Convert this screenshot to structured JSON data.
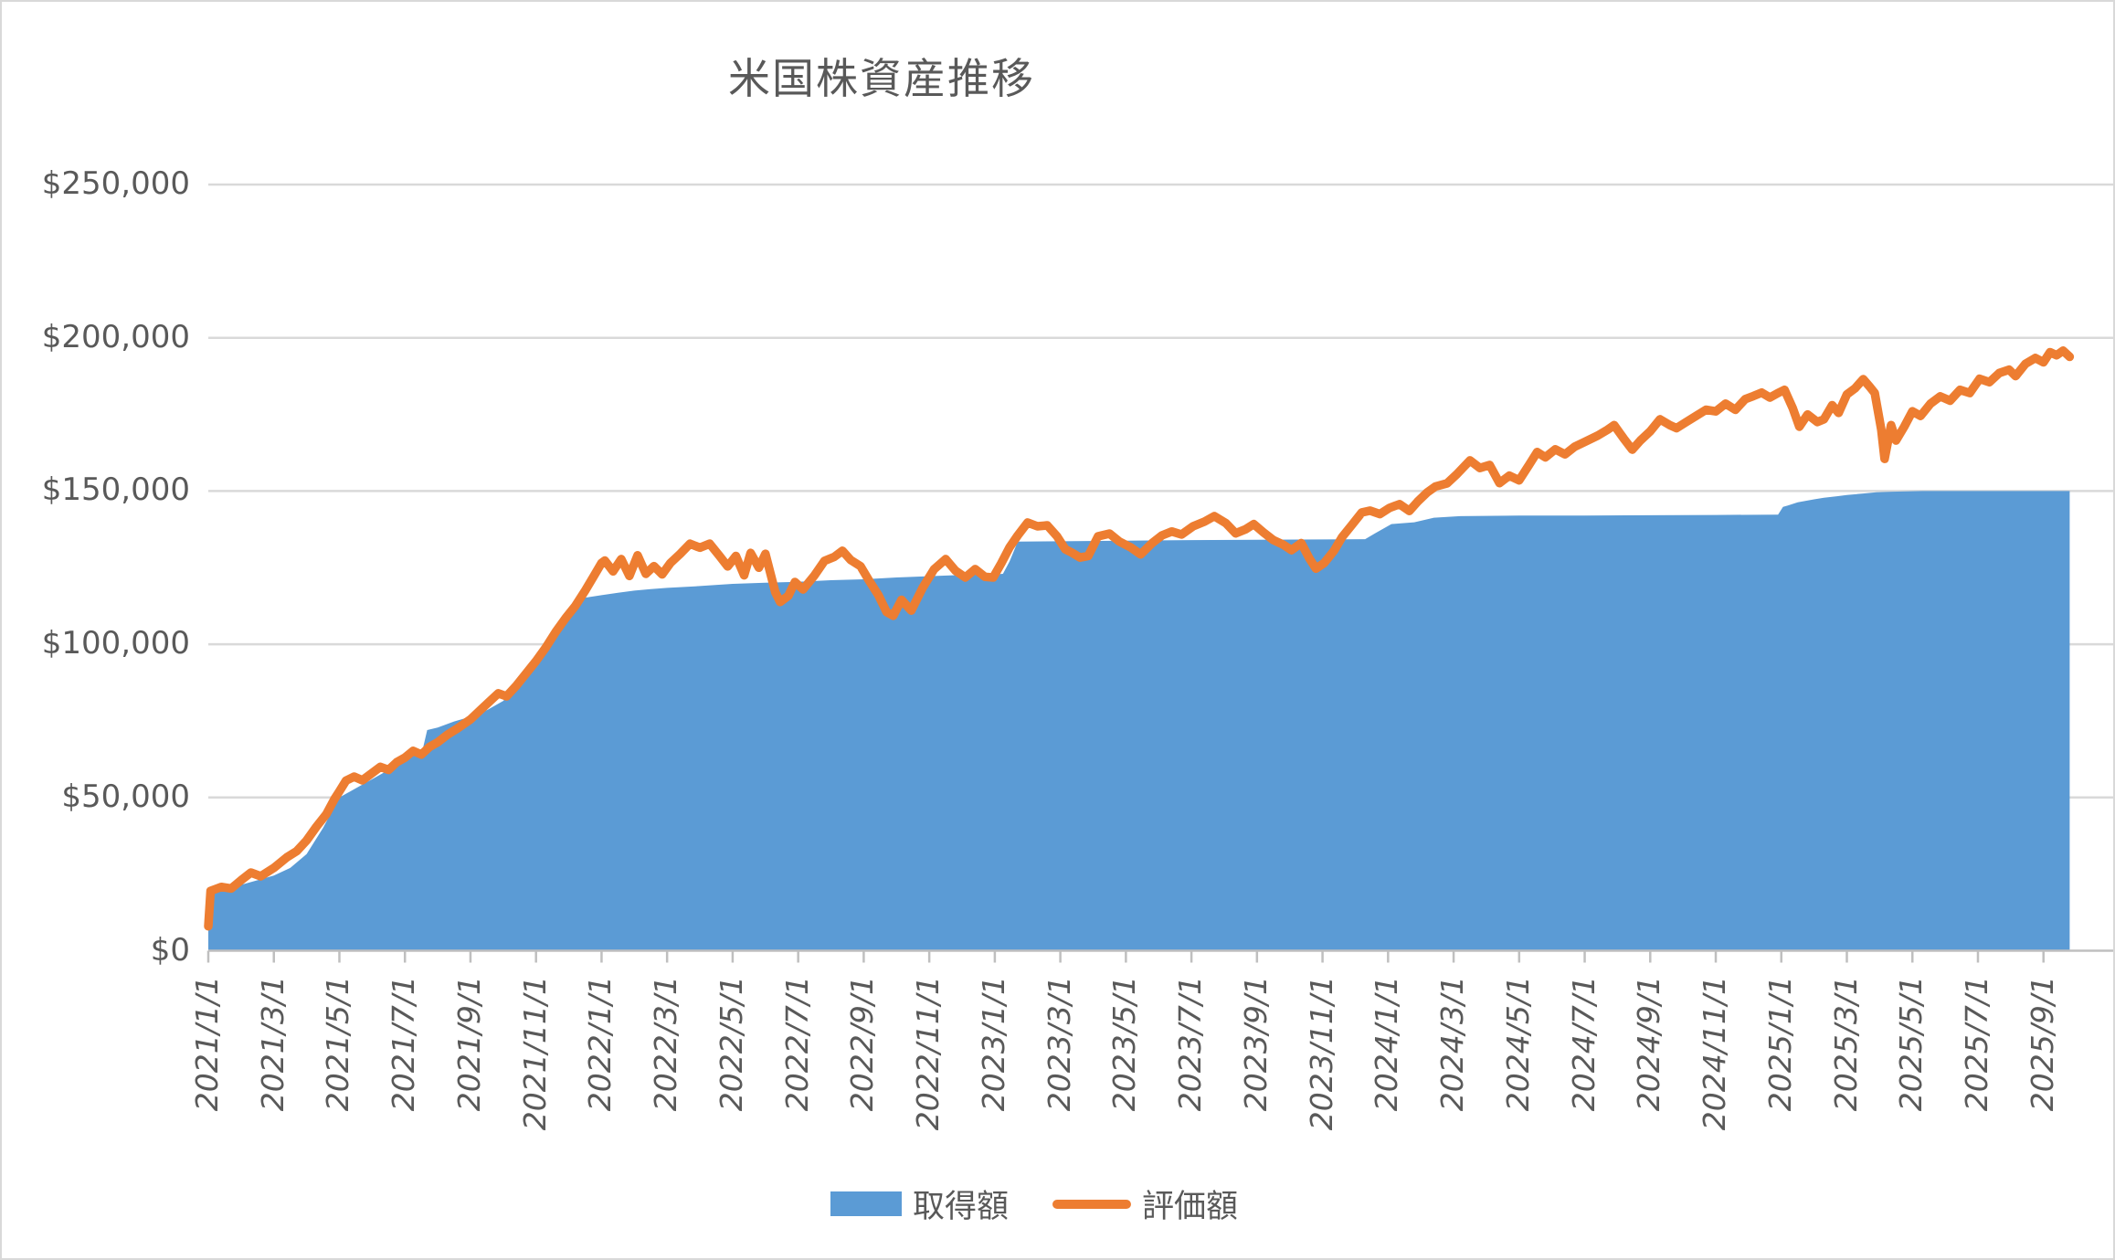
{
  "page": {
    "background": "#FFFFFF",
    "border_color": "#D9D9D9"
  },
  "chart_data": {
    "type": "area+line",
    "title": "米国株資産推移",
    "title_color": "#595959",
    "grid": {
      "show": true,
      "color": "#D9D9D9",
      "axis_color": "#BFBFBF"
    },
    "legend": {
      "position": "bottom-center",
      "items": [
        {
          "label": "取得額",
          "marker": "filled-rect",
          "color": "#5B9BD5"
        },
        {
          "label": "評価額",
          "marker": "line",
          "color": "#ED7D31"
        }
      ]
    },
    "x_axis": {
      "unit": "months since 2021/1/1",
      "min": 0,
      "max": 56.8,
      "tick_interval_months": 2,
      "tick_labels": [
        "2021/1/1",
        "2021/3/1",
        "2021/5/1",
        "2021/7/1",
        "2021/9/1",
        "2021/11/1",
        "2022/1/1",
        "2022/3/1",
        "2022/5/1",
        "2022/7/1",
        "2022/9/1",
        "2022/11/1",
        "2023/1/1",
        "2023/3/1",
        "2023/5/1",
        "2023/7/1",
        "2023/9/1",
        "2023/11/1",
        "2024/1/1",
        "2024/3/1",
        "2024/5/1",
        "2024/7/1",
        "2024/9/1",
        "2024/11/1",
        "2025/1/1",
        "2025/3/1",
        "2025/5/1",
        "2025/7/1",
        "2025/9/1"
      ]
    },
    "y_axis": {
      "min": 0,
      "max": 250000,
      "tick_step": 50000,
      "ticks": [
        {
          "value": 0,
          "label": "$0"
        },
        {
          "value": 50000,
          "label": "$50,000"
        },
        {
          "value": 100000,
          "label": "$100,000"
        },
        {
          "value": 150000,
          "label": "$150,000"
        },
        {
          "value": 200000,
          "label": "$200,000"
        },
        {
          "value": 250000,
          "label": "$250,000"
        }
      ]
    },
    "series": [
      {
        "name": "取得額",
        "type": "area",
        "color": "#5B9BD5",
        "points": [
          [
            0,
            18500
          ],
          [
            0.5,
            20000
          ],
          [
            1,
            21500
          ],
          [
            1.5,
            23000
          ],
          [
            2,
            24500
          ],
          [
            2.5,
            27000
          ],
          [
            3,
            31500
          ],
          [
            3.5,
            40000
          ],
          [
            4,
            50000
          ],
          [
            4.5,
            53000
          ],
          [
            5,
            56000
          ],
          [
            5.5,
            59000
          ],
          [
            6,
            62000
          ],
          [
            6.55,
            66000
          ],
          [
            6.68,
            72000
          ],
          [
            7,
            72800
          ],
          [
            7.5,
            74800
          ],
          [
            8,
            76400
          ],
          [
            8.5,
            78500
          ],
          [
            9,
            81500
          ],
          [
            9.5,
            87500
          ],
          [
            10,
            95000
          ],
          [
            10.5,
            103000
          ],
          [
            11,
            110000
          ],
          [
            11.5,
            115200
          ],
          [
            12,
            116000
          ],
          [
            12.5,
            116800
          ],
          [
            13,
            117500
          ],
          [
            13.5,
            118000
          ],
          [
            14,
            118400
          ],
          [
            15,
            119000
          ],
          [
            16,
            119700
          ],
          [
            17,
            120100
          ],
          [
            18,
            120400
          ],
          [
            19,
            120900
          ],
          [
            20,
            121200
          ],
          [
            21,
            121800
          ],
          [
            22,
            122200
          ],
          [
            23,
            122600
          ],
          [
            24,
            122800
          ],
          [
            24.25,
            123000
          ],
          [
            24.45,
            127000
          ],
          [
            24.7,
            133500
          ],
          [
            26,
            133600
          ],
          [
            28,
            133800
          ],
          [
            30,
            134000
          ],
          [
            32,
            134100
          ],
          [
            34,
            134200
          ],
          [
            35.3,
            134300
          ],
          [
            35.6,
            136200
          ],
          [
            36.1,
            139200
          ],
          [
            36.8,
            139800
          ],
          [
            37.4,
            141300
          ],
          [
            38.2,
            141800
          ],
          [
            40,
            142000
          ],
          [
            42,
            142000
          ],
          [
            44,
            142100
          ],
          [
            46,
            142200
          ],
          [
            47.9,
            142300
          ],
          [
            48.05,
            144800
          ],
          [
            48.2,
            145300
          ],
          [
            48.5,
            146300
          ],
          [
            49,
            147300
          ],
          [
            49.3,
            147800
          ],
          [
            49.7,
            148300
          ],
          [
            50,
            148700
          ],
          [
            50.5,
            149200
          ],
          [
            50.9,
            149600
          ],
          [
            51.4,
            149800
          ],
          [
            52.3,
            150000
          ],
          [
            56.8,
            150000
          ]
        ]
      },
      {
        "name": "評価額",
        "type": "line",
        "color": "#ED7D31",
        "stroke_width": 9.5,
        "points": [
          [
            0,
            8000
          ],
          [
            0.07,
            19500
          ],
          [
            0.4,
            20800
          ],
          [
            0.7,
            20300
          ],
          [
            1,
            23000
          ],
          [
            1.3,
            25500
          ],
          [
            1.6,
            24300
          ],
          [
            2,
            27000
          ],
          [
            2.4,
            30500
          ],
          [
            2.7,
            32500
          ],
          [
            3,
            36000
          ],
          [
            3.3,
            40500
          ],
          [
            3.6,
            44500
          ],
          [
            3.85,
            49500
          ],
          [
            4,
            52000
          ],
          [
            4.2,
            55500
          ],
          [
            4.45,
            56800
          ],
          [
            4.7,
            55600
          ],
          [
            5,
            58000
          ],
          [
            5.25,
            60000
          ],
          [
            5.5,
            59000
          ],
          [
            5.75,
            61500
          ],
          [
            6,
            63000
          ],
          [
            6.25,
            65200
          ],
          [
            6.5,
            64000
          ],
          [
            6.75,
            66500
          ],
          [
            7,
            68000
          ],
          [
            7.3,
            70500
          ],
          [
            7.6,
            72500
          ],
          [
            8,
            75500
          ],
          [
            8.3,
            78500
          ],
          [
            8.6,
            81500
          ],
          [
            8.85,
            84000
          ],
          [
            9.1,
            83000
          ],
          [
            9.4,
            86500
          ],
          [
            9.7,
            90500
          ],
          [
            10,
            94500
          ],
          [
            10.3,
            99000
          ],
          [
            10.6,
            104000
          ],
          [
            10.9,
            108500
          ],
          [
            11.2,
            112500
          ],
          [
            11.5,
            117500
          ],
          [
            11.75,
            122000
          ],
          [
            12,
            126500
          ],
          [
            12.1,
            127300
          ],
          [
            12.35,
            123800
          ],
          [
            12.6,
            127800
          ],
          [
            12.85,
            122300
          ],
          [
            13.1,
            129000
          ],
          [
            13.35,
            123000
          ],
          [
            13.6,
            125500
          ],
          [
            13.85,
            122800
          ],
          [
            14.1,
            126500
          ],
          [
            14.4,
            129500
          ],
          [
            14.7,
            132800
          ],
          [
            15,
            131500
          ],
          [
            15.3,
            132800
          ],
          [
            15.6,
            128800
          ],
          [
            15.85,
            125400
          ],
          [
            16.1,
            128800
          ],
          [
            16.35,
            122500
          ],
          [
            16.55,
            129800
          ],
          [
            16.8,
            125000
          ],
          [
            17,
            129500
          ],
          [
            17.3,
            117000
          ],
          [
            17.45,
            113800
          ],
          [
            17.7,
            115800
          ],
          [
            17.9,
            120300
          ],
          [
            18.15,
            117900
          ],
          [
            18.5,
            122500
          ],
          [
            18.8,
            127200
          ],
          [
            19.1,
            128500
          ],
          [
            19.35,
            130500
          ],
          [
            19.6,
            127500
          ],
          [
            19.9,
            125500
          ],
          [
            20.15,
            121000
          ],
          [
            20.45,
            116000
          ],
          [
            20.7,
            110500
          ],
          [
            20.9,
            109300
          ],
          [
            21.15,
            114500
          ],
          [
            21.45,
            111000
          ],
          [
            21.8,
            118500
          ],
          [
            22.15,
            124500
          ],
          [
            22.5,
            127800
          ],
          [
            22.8,
            124000
          ],
          [
            23.1,
            121800
          ],
          [
            23.4,
            124500
          ],
          [
            23.7,
            122000
          ],
          [
            23.95,
            121800
          ],
          [
            24.2,
            126500
          ],
          [
            24.45,
            131600
          ],
          [
            24.7,
            135500
          ],
          [
            25,
            139700
          ],
          [
            25.3,
            138500
          ],
          [
            25.6,
            138800
          ],
          [
            25.9,
            135200
          ],
          [
            26.15,
            131000
          ],
          [
            26.35,
            129900
          ],
          [
            26.6,
            128300
          ],
          [
            26.85,
            128800
          ],
          [
            27.15,
            135200
          ],
          [
            27.5,
            136100
          ],
          [
            27.8,
            133500
          ],
          [
            28.15,
            131600
          ],
          [
            28.45,
            129300
          ],
          [
            28.8,
            133000
          ],
          [
            29.1,
            135500
          ],
          [
            29.4,
            136800
          ],
          [
            29.7,
            135800
          ],
          [
            30.05,
            138500
          ],
          [
            30.4,
            140000
          ],
          [
            30.7,
            141800
          ],
          [
            31.05,
            139500
          ],
          [
            31.35,
            136200
          ],
          [
            31.65,
            137500
          ],
          [
            31.9,
            139200
          ],
          [
            32.2,
            136500
          ],
          [
            32.5,
            134000
          ],
          [
            32.8,
            132500
          ],
          [
            33.05,
            130700
          ],
          [
            33.35,
            133000
          ],
          [
            33.6,
            128000
          ],
          [
            33.8,
            124700
          ],
          [
            34.05,
            126500
          ],
          [
            34.35,
            130500
          ],
          [
            34.6,
            135000
          ],
          [
            34.9,
            139000
          ],
          [
            35.2,
            143000
          ],
          [
            35.45,
            143600
          ],
          [
            35.75,
            142500
          ],
          [
            36.05,
            144500
          ],
          [
            36.35,
            145700
          ],
          [
            36.65,
            143500
          ],
          [
            36.9,
            146500
          ],
          [
            37.2,
            149600
          ],
          [
            37.45,
            151500
          ],
          [
            37.8,
            152500
          ],
          [
            38.1,
            155500
          ],
          [
            38.5,
            160000
          ],
          [
            38.8,
            157500
          ],
          [
            39.1,
            158500
          ],
          [
            39.4,
            152600
          ],
          [
            39.7,
            155000
          ],
          [
            40,
            153500
          ],
          [
            40.3,
            158500
          ],
          [
            40.55,
            162700
          ],
          [
            40.8,
            161000
          ],
          [
            41.1,
            163600
          ],
          [
            41.4,
            162000
          ],
          [
            41.7,
            164500
          ],
          [
            42,
            166000
          ],
          [
            42.4,
            168100
          ],
          [
            42.7,
            170000
          ],
          [
            42.9,
            171500
          ],
          [
            43.2,
            167000
          ],
          [
            43.45,
            163500
          ],
          [
            43.7,
            166500
          ],
          [
            44,
            169500
          ],
          [
            44.3,
            173400
          ],
          [
            44.6,
            171500
          ],
          [
            44.8,
            170500
          ],
          [
            45.1,
            172500
          ],
          [
            45.4,
            174500
          ],
          [
            45.7,
            176500
          ],
          [
            46,
            176000
          ],
          [
            46.3,
            178500
          ],
          [
            46.6,
            176500
          ],
          [
            46.9,
            180000
          ],
          [
            47.15,
            181000
          ],
          [
            47.4,
            182100
          ],
          [
            47.65,
            180500
          ],
          [
            47.9,
            182000
          ],
          [
            48.1,
            183000
          ],
          [
            48.35,
            177000
          ],
          [
            48.55,
            171000
          ],
          [
            48.8,
            175000
          ],
          [
            49.1,
            172500
          ],
          [
            49.3,
            173400
          ],
          [
            49.55,
            178000
          ],
          [
            49.75,
            175500
          ],
          [
            50,
            181500
          ],
          [
            50.25,
            183500
          ],
          [
            50.5,
            186500
          ],
          [
            50.7,
            184000
          ],
          [
            50.85,
            182000
          ],
          [
            51.05,
            170000
          ],
          [
            51.15,
            160500
          ],
          [
            51.35,
            171500
          ],
          [
            51.5,
            166500
          ],
          [
            51.75,
            171000
          ],
          [
            52,
            176000
          ],
          [
            52.25,
            174500
          ],
          [
            52.55,
            178500
          ],
          [
            52.85,
            180900
          ],
          [
            53.15,
            179500
          ],
          [
            53.45,
            183000
          ],
          [
            53.75,
            182000
          ],
          [
            54.05,
            186600
          ],
          [
            54.35,
            185500
          ],
          [
            54.65,
            188500
          ],
          [
            54.95,
            189600
          ],
          [
            55.15,
            187500
          ],
          [
            55.45,
            191500
          ],
          [
            55.75,
            193400
          ],
          [
            56,
            192000
          ],
          [
            56.2,
            195300
          ],
          [
            56.4,
            194300
          ],
          [
            56.6,
            195800
          ],
          [
            56.8,
            193800
          ]
        ]
      }
    ]
  }
}
